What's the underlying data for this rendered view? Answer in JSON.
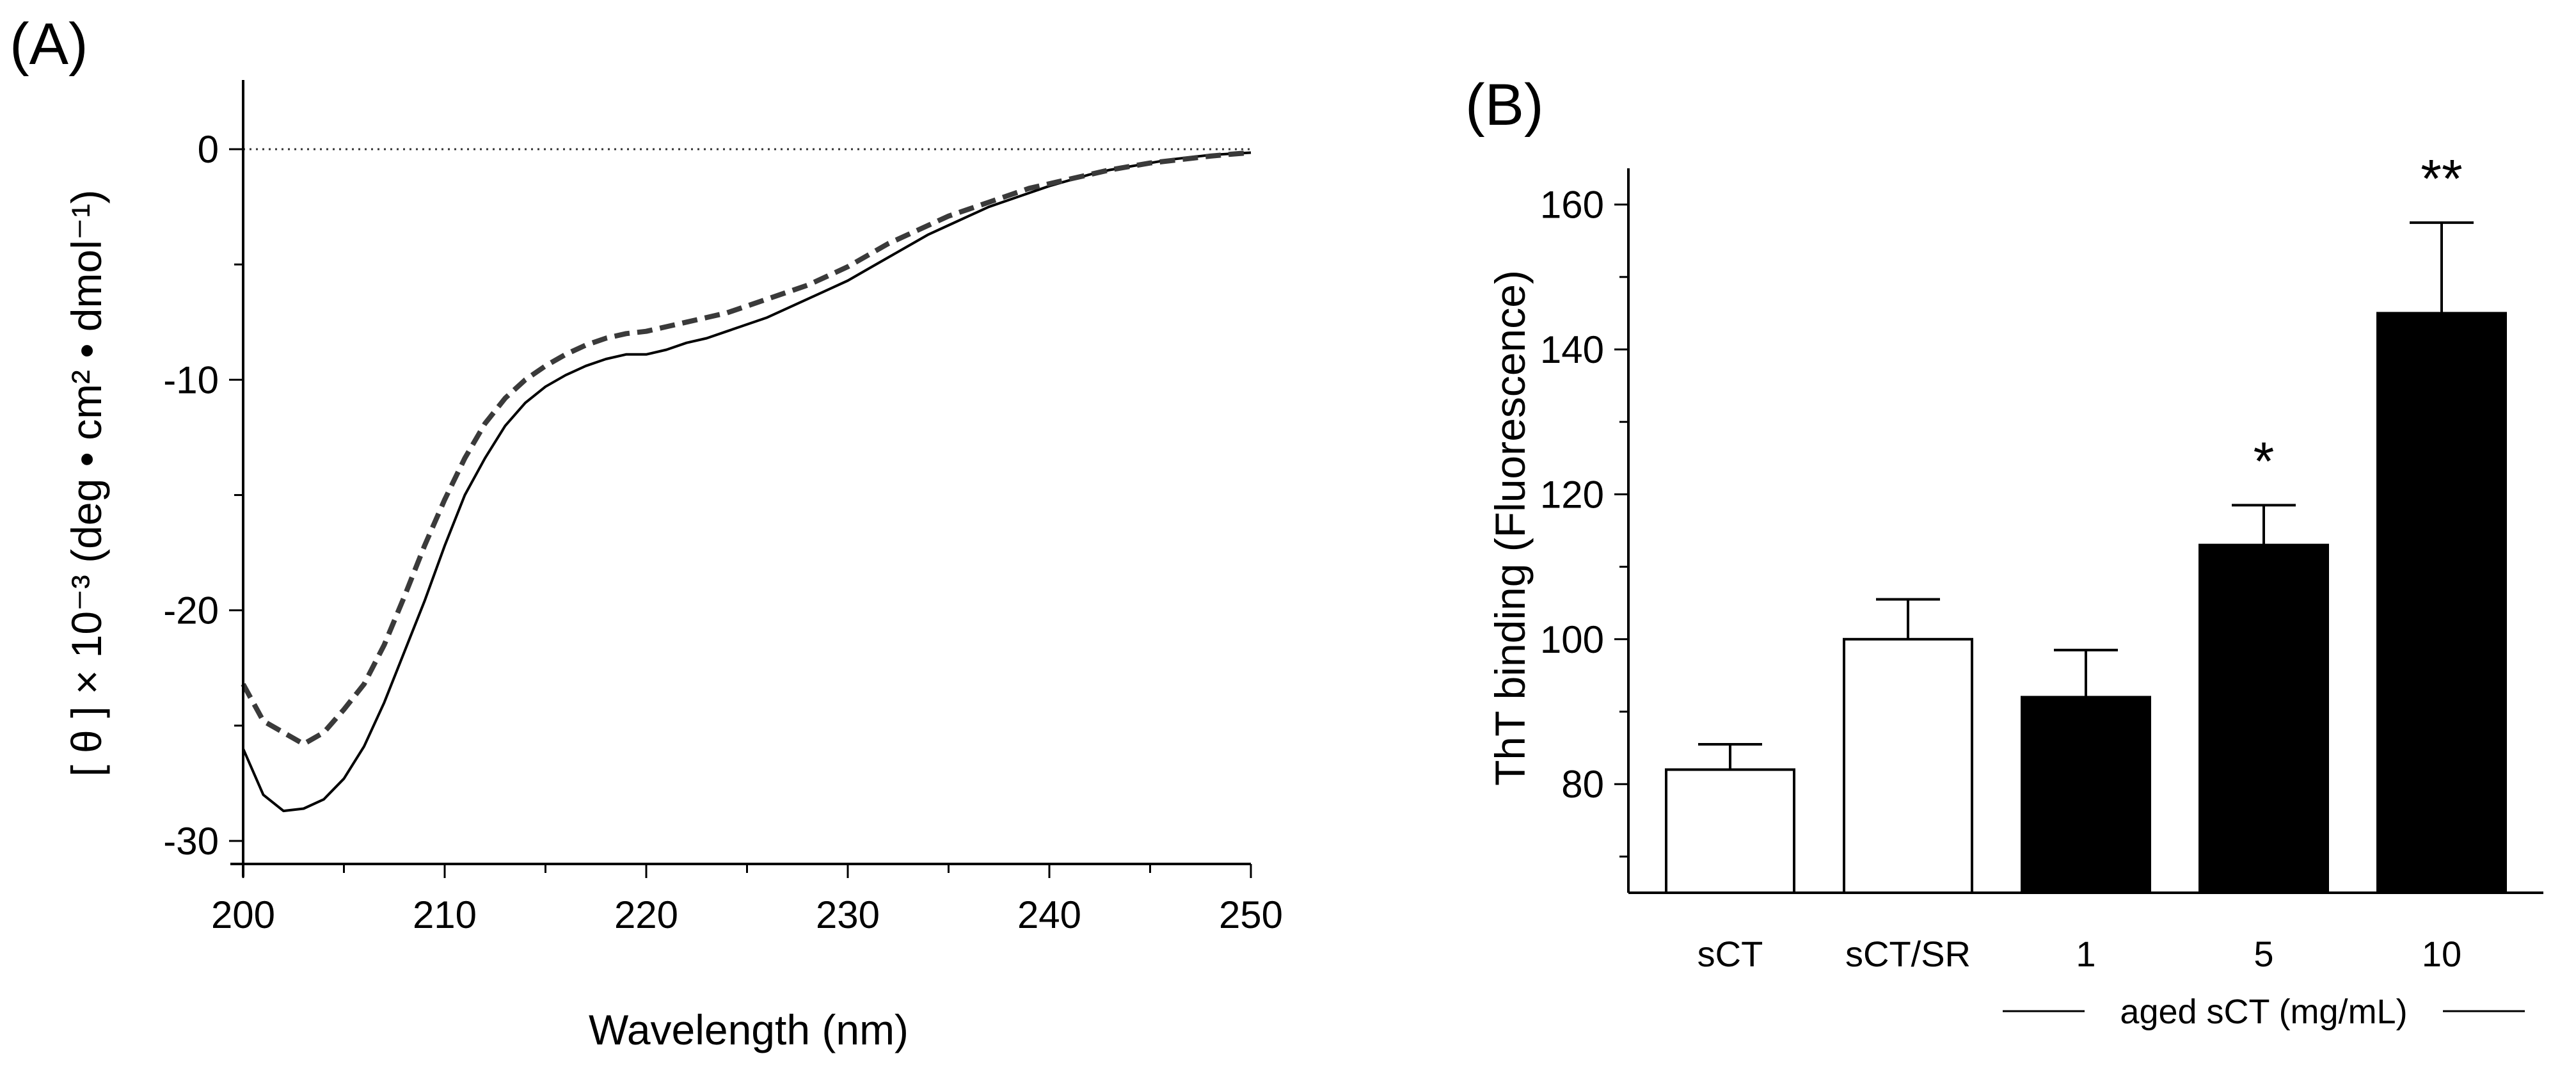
{
  "chart_data": [
    {
      "panel": "(A)",
      "type": "line",
      "xlabel": "Wavelength (nm)",
      "ylabel": "[ θ ] × 10⁻³ (deg • cm² • dmol⁻¹)",
      "xlim": [
        200,
        250
      ],
      "ylim": [
        -31,
        3
      ],
      "xticks": [
        200,
        210,
        220,
        230,
        240,
        250
      ],
      "xtick_labels": [
        "200",
        "210",
        "220",
        "230",
        "240",
        "250"
      ],
      "yticks": [
        0,
        -10,
        -20,
        -30
      ],
      "ytick_labels": [
        "0",
        "-10",
        "-20",
        "-30"
      ],
      "reference_line": 0,
      "series": [
        {
          "name": "solid",
          "style": "solid",
          "color": "#000000",
          "x": [
            200,
            201,
            202,
            203,
            204,
            205,
            206,
            207,
            208,
            209,
            210,
            211,
            212,
            213,
            214,
            215,
            216,
            217,
            218,
            219,
            220,
            221,
            222,
            223,
            224,
            225,
            226,
            227,
            228,
            229,
            230,
            231,
            232,
            233,
            234,
            235,
            236,
            237,
            238,
            239,
            240,
            241,
            242,
            243,
            244,
            245,
            246,
            247,
            248,
            249,
            250
          ],
          "values": [
            -26.0,
            -28.0,
            -28.7,
            -28.6,
            -28.2,
            -27.3,
            -25.9,
            -24.0,
            -21.8,
            -19.6,
            -17.2,
            -15.0,
            -13.4,
            -12.0,
            -11.0,
            -10.3,
            -9.8,
            -9.4,
            -9.1,
            -8.9,
            -8.9,
            -8.7,
            -8.4,
            -8.2,
            -7.9,
            -7.6,
            -7.3,
            -6.9,
            -6.5,
            -6.1,
            -5.7,
            -5.2,
            -4.7,
            -4.2,
            -3.7,
            -3.3,
            -2.9,
            -2.5,
            -2.2,
            -1.9,
            -1.6,
            -1.35,
            -1.1,
            -0.9,
            -0.75,
            -0.6,
            -0.45,
            -0.35,
            -0.25,
            -0.2,
            -0.15
          ]
        },
        {
          "name": "dashed",
          "style": "dashed",
          "color": "#3a3a3a",
          "x": [
            200,
            201,
            202,
            203,
            204,
            205,
            206,
            207,
            208,
            209,
            210,
            211,
            212,
            213,
            214,
            215,
            216,
            217,
            218,
            219,
            220,
            221,
            222,
            223,
            224,
            225,
            226,
            227,
            228,
            229,
            230,
            231,
            232,
            233,
            234,
            235,
            236,
            237,
            238,
            239,
            240,
            241,
            242,
            243,
            244,
            245,
            246,
            247,
            248,
            249,
            250
          ],
          "values": [
            -23.2,
            -24.8,
            -25.3,
            -25.8,
            -25.3,
            -24.3,
            -23.2,
            -21.5,
            -19.4,
            -17.2,
            -15.2,
            -13.4,
            -11.9,
            -10.8,
            -10.0,
            -9.4,
            -8.9,
            -8.5,
            -8.2,
            -8.0,
            -7.9,
            -7.7,
            -7.5,
            -7.3,
            -7.1,
            -6.8,
            -6.5,
            -6.2,
            -5.9,
            -5.5,
            -5.1,
            -4.6,
            -4.1,
            -3.7,
            -3.3,
            -2.9,
            -2.6,
            -2.3,
            -2.0,
            -1.7,
            -1.5,
            -1.3,
            -1.1,
            -0.9,
            -0.75,
            -0.6,
            -0.5,
            -0.4,
            -0.3,
            -0.22,
            -0.15
          ]
        }
      ]
    },
    {
      "panel": "(B)",
      "type": "bar",
      "ylabel": "ThT binding (Fluorescence)",
      "ylim": [
        65,
        165
      ],
      "yticks": [
        80,
        100,
        120,
        140,
        160
      ],
      "ytick_labels": [
        "80",
        "100",
        "120",
        "140",
        "160"
      ],
      "categories": [
        "sCT",
        "sCT/SR",
        "1",
        "5",
        "10"
      ],
      "values": [
        82,
        100,
        92,
        113,
        145
      ],
      "errors": [
        3.5,
        5.5,
        6.5,
        5.5,
        12.5
      ],
      "bar_fill": [
        "#ffffff",
        "#ffffff",
        "#000000",
        "#000000",
        "#000000"
      ],
      "significance": [
        "",
        "",
        "",
        "*",
        "**"
      ],
      "group_label": "aged sCT (mg/mL)",
      "group_categories": [
        "1",
        "5",
        "10"
      ]
    }
  ]
}
